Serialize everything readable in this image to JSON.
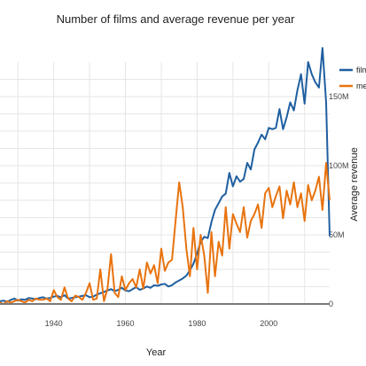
{
  "chart_data": {
    "type": "line",
    "title": "Number of films and average revenue per year",
    "xlabel": "Year",
    "ylabel_right": "Average revenue",
    "xticks": [
      1940,
      1960,
      1980,
      2000
    ],
    "xlim": [
      1925,
      2017
    ],
    "y2ticks": [
      {
        "value": 0,
        "label": "0"
      },
      {
        "value": 50,
        "label": "50M"
      },
      {
        "value": 100,
        "label": "100M"
      },
      {
        "value": 150,
        "label": "150M"
      }
    ],
    "y2lim": [
      0,
      175
    ],
    "ylim_left": [
      0,
      360
    ],
    "grid": true,
    "legend_position": "top-right",
    "series": [
      {
        "name": "films",
        "color": "#1f5fa0",
        "axis": "left",
        "x": [
          1925,
          1926,
          1927,
          1928,
          1929,
          1930,
          1931,
          1932,
          1933,
          1934,
          1935,
          1936,
          1937,
          1938,
          1939,
          1940,
          1941,
          1942,
          1943,
          1944,
          1945,
          1946,
          1947,
          1948,
          1949,
          1950,
          1951,
          1952,
          1953,
          1954,
          1955,
          1956,
          1957,
          1958,
          1959,
          1960,
          1961,
          1962,
          1963,
          1964,
          1965,
          1966,
          1967,
          1968,
          1969,
          1970,
          1971,
          1972,
          1973,
          1974,
          1975,
          1976,
          1977,
          1978,
          1979,
          1980,
          1981,
          1982,
          1983,
          1984,
          1985,
          1986,
          1987,
          1988,
          1989,
          1990,
          1991,
          1992,
          1993,
          1994,
          1995,
          1996,
          1997,
          1998,
          1999,
          2000,
          2001,
          2002,
          2003,
          2004,
          2005,
          2006,
          2007,
          2008,
          2009,
          2010,
          2011,
          2012,
          2013,
          2014,
          2015,
          2016,
          2017
        ],
        "values": [
          4,
          5,
          3,
          6,
          8,
          5,
          7,
          6,
          9,
          8,
          7,
          9,
          10,
          8,
          9,
          11,
          12,
          10,
          13,
          8,
          9,
          10,
          11,
          12,
          13,
          10,
          11,
          14,
          16,
          18,
          20,
          22,
          19,
          21,
          24,
          20,
          19,
          22,
          25,
          21,
          23,
          26,
          24,
          28,
          27,
          29,
          30,
          26,
          28,
          32,
          35,
          38,
          42,
          50,
          60,
          75,
          92,
          100,
          98,
          122,
          140,
          150,
          160,
          164,
          195,
          175,
          190,
          182,
          186,
          210,
          200,
          230,
          240,
          252,
          245,
          262,
          260,
          262,
          290,
          260,
          278,
          300,
          288,
          318,
          342,
          298,
          360,
          342,
          330,
          322,
          381,
          300,
          101
        ]
      },
      {
        "name": "mean revenue",
        "color": "#e8730f",
        "axis": "right",
        "x": [
          1925,
          1926,
          1927,
          1928,
          1929,
          1930,
          1931,
          1932,
          1933,
          1934,
          1935,
          1936,
          1937,
          1938,
          1939,
          1940,
          1941,
          1942,
          1943,
          1944,
          1945,
          1946,
          1947,
          1948,
          1949,
          1950,
          1951,
          1952,
          1953,
          1954,
          1955,
          1956,
          1957,
          1958,
          1959,
          1960,
          1961,
          1962,
          1963,
          1964,
          1965,
          1966,
          1967,
          1968,
          1969,
          1970,
          1971,
          1972,
          1973,
          1974,
          1975,
          1976,
          1977,
          1978,
          1979,
          1980,
          1981,
          1982,
          1983,
          1984,
          1985,
          1986,
          1987,
          1988,
          1989,
          1990,
          1991,
          1992,
          1993,
          1994,
          1995,
          1996,
          1997,
          1998,
          1999,
          2000,
          2001,
          2002,
          2003,
          2004,
          2005,
          2006,
          2007,
          2008,
          2009,
          2010,
          2011,
          2012,
          2013,
          2014,
          2015,
          2016,
          2017
        ],
        "values": [
          1,
          0,
          2,
          1,
          2,
          3,
          2,
          1,
          3,
          2,
          4,
          3,
          3,
          4,
          2,
          10,
          5,
          3,
          12,
          4,
          2,
          6,
          5,
          3,
          8,
          15,
          3,
          4,
          25,
          2,
          11,
          36,
          8,
          5,
          20,
          10,
          15,
          18,
          12,
          25,
          11,
          30,
          22,
          28,
          15,
          40,
          24,
          30,
          32,
          60,
          88,
          70,
          40,
          20,
          55,
          25,
          50,
          35,
          8,
          52,
          20,
          45,
          35,
          70,
          40,
          65,
          58,
          52,
          70,
          48,
          60,
          65,
          72,
          55,
          80,
          84,
          70,
          78,
          85,
          62,
          82,
          72,
          88,
          70,
          80,
          60,
          86,
          75,
          82,
          92,
          68,
          102,
          75
        ]
      }
    ]
  }
}
